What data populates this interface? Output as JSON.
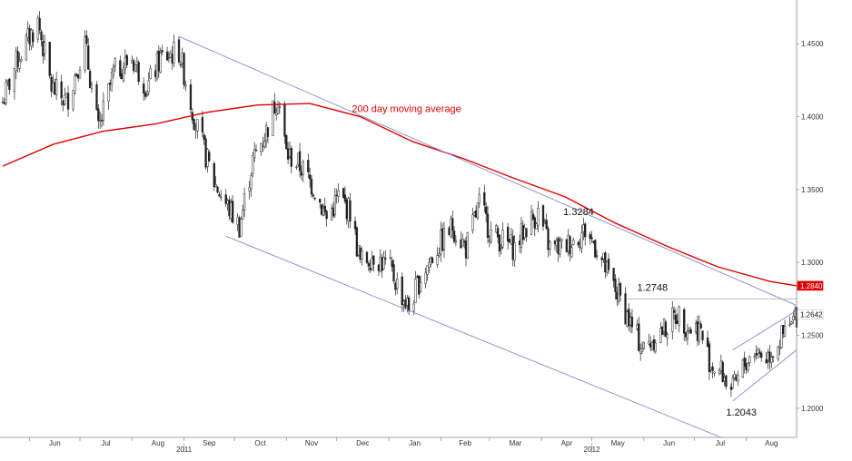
{
  "chart_data": {
    "type": "candlestick",
    "title": "",
    "xlabel": "",
    "ylabel": "",
    "ylim": [
      1.18,
      1.48
    ],
    "y_ticks": [
      1.2,
      1.25,
      1.3,
      1.35,
      1.4,
      1.45
    ],
    "y_tick_labels": [
      "1.2000",
      "1.2500",
      "1.3000",
      "1.3500",
      "1.4000",
      "1.4500"
    ],
    "x_range": [
      "2011-05-16",
      "2012-08-31"
    ],
    "month_ticks": [
      {
        "label": "Jun",
        "date": "2011-06-01"
      },
      {
        "label": "Jul",
        "date": "2011-07-01"
      },
      {
        "label": "Aug",
        "date": "2011-08-01"
      },
      {
        "label": "Sep",
        "date": "2011-09-01"
      },
      {
        "label": "Oct",
        "date": "2011-10-01"
      },
      {
        "label": "Nov",
        "date": "2011-11-01"
      },
      {
        "label": "Dec",
        "date": "2011-12-01"
      },
      {
        "label": "Jan",
        "date": "2012-01-01"
      },
      {
        "label": "Feb",
        "date": "2012-02-01"
      },
      {
        "label": "Mar",
        "date": "2012-03-01"
      },
      {
        "label": "Apr",
        "date": "2012-04-01"
      },
      {
        "label": "May",
        "date": "2012-05-01"
      },
      {
        "label": "Jun",
        "date": "2012-06-01"
      },
      {
        "label": "Jul",
        "date": "2012-07-01"
      },
      {
        "label": "Aug",
        "date": "2012-08-01"
      }
    ],
    "year_labels": [
      {
        "label": "2011",
        "date": "2011-09-01"
      },
      {
        "label": "2012",
        "date": "2012-05-01"
      }
    ],
    "price_path": [
      [
        "2011-05-16",
        1.41
      ],
      [
        "2011-05-25",
        1.44
      ],
      [
        "2011-06-06",
        1.465
      ],
      [
        "2011-06-14",
        1.42
      ],
      [
        "2011-06-23",
        1.41
      ],
      [
        "2011-07-04",
        1.45
      ],
      [
        "2011-07-12",
        1.39
      ],
      [
        "2011-07-21",
        1.43
      ],
      [
        "2011-08-01",
        1.44
      ],
      [
        "2011-08-10",
        1.42
      ],
      [
        "2011-08-18",
        1.44
      ],
      [
        "2011-08-29",
        1.445
      ],
      [
        "2011-09-08",
        1.395
      ],
      [
        "2011-09-19",
        1.355
      ],
      [
        "2011-09-26",
        1.34
      ],
      [
        "2011-10-04",
        1.325
      ],
      [
        "2011-10-12",
        1.37
      ],
      [
        "2011-10-20",
        1.39
      ],
      [
        "2011-10-27",
        1.415
      ],
      [
        "2011-11-01",
        1.375
      ],
      [
        "2011-11-10",
        1.365
      ],
      [
        "2011-11-18",
        1.35
      ],
      [
        "2011-11-25",
        1.33
      ],
      [
        "2011-12-02",
        1.345
      ],
      [
        "2011-12-09",
        1.335
      ],
      [
        "2011-12-15",
        1.3
      ],
      [
        "2011-12-23",
        1.305
      ],
      [
        "2012-01-02",
        1.295
      ],
      [
        "2012-01-10",
        1.275
      ],
      [
        "2012-01-13",
        1.268
      ],
      [
        "2012-01-20",
        1.29
      ],
      [
        "2012-01-30",
        1.31
      ],
      [
        "2012-02-08",
        1.325
      ],
      [
        "2012-02-16",
        1.31
      ],
      [
        "2012-02-24",
        1.34
      ],
      [
        "2012-03-02",
        1.32
      ],
      [
        "2012-03-09",
        1.315
      ],
      [
        "2012-03-16",
        1.31
      ],
      [
        "2012-03-23",
        1.325
      ],
      [
        "2012-03-30",
        1.334
      ],
      [
        "2012-04-06",
        1.31
      ],
      [
        "2012-04-13",
        1.31
      ],
      [
        "2012-04-20",
        1.315
      ],
      [
        "2012-04-27",
        1.322
      ],
      [
        "2012-05-04",
        1.31
      ],
      [
        "2012-05-11",
        1.29
      ],
      [
        "2012-05-18",
        1.275
      ],
      [
        "2012-05-25",
        1.255
      ],
      [
        "2012-06-01",
        1.24
      ],
      [
        "2012-06-08",
        1.25
      ],
      [
        "2012-06-14",
        1.255
      ],
      [
        "2012-06-21",
        1.265
      ],
      [
        "2012-06-28",
        1.255
      ],
      [
        "2012-07-04",
        1.255
      ],
      [
        "2012-07-11",
        1.23
      ],
      [
        "2012-07-17",
        1.225
      ],
      [
        "2012-07-24",
        1.212
      ],
      [
        "2012-07-31",
        1.23
      ],
      [
        "2012-08-06",
        1.24
      ],
      [
        "2012-08-13",
        1.235
      ],
      [
        "2012-08-20",
        1.245
      ],
      [
        "2012-08-27",
        1.255
      ],
      [
        "2012-08-31",
        1.2642
      ]
    ],
    "moving_average": {
      "name": "200 day moving average",
      "color": "#e00000",
      "points": [
        [
          "2011-05-16",
          1.366
        ],
        [
          "2011-06-15",
          1.381
        ],
        [
          "2011-07-15",
          1.39
        ],
        [
          "2011-08-15",
          1.395
        ],
        [
          "2011-09-15",
          1.403
        ],
        [
          "2011-10-15",
          1.408
        ],
        [
          "2011-11-15",
          1.409
        ],
        [
          "2011-12-15",
          1.4
        ],
        [
          "2012-01-15",
          1.383
        ],
        [
          "2012-02-15",
          1.371
        ],
        [
          "2012-03-15",
          1.358
        ],
        [
          "2012-04-15",
          1.345
        ],
        [
          "2012-05-15",
          1.327
        ],
        [
          "2012-06-15",
          1.311
        ],
        [
          "2012-07-15",
          1.297
        ],
        [
          "2012-08-15",
          1.287
        ],
        [
          "2012-08-31",
          1.284
        ]
      ]
    },
    "trendlines": [
      {
        "color": "#8888cc",
        "from": [
          "2011-08-29",
          1.455
        ],
        "to": [
          "2012-08-31",
          1.2705
        ]
      },
      {
        "color": "#8888cc",
        "from": [
          "2011-09-26",
          1.318
        ],
        "to": [
          "2012-07-17",
          1.18
        ]
      },
      {
        "color": "#8888cc",
        "from": [
          "2012-07-24",
          1.24
        ],
        "to": [
          "2012-08-31",
          1.267
        ]
      },
      {
        "color": "#8888cc",
        "from": [
          "2012-07-24",
          1.205
        ],
        "to": [
          "2012-08-31",
          1.24
        ]
      }
    ],
    "horizontal_lines": [
      {
        "y": 1.2748,
        "from": "2012-05-22",
        "to": "2012-08-31",
        "color": "#999999"
      }
    ],
    "annotations": [
      {
        "text": "200 day moving average",
        "date": "2011-12-10",
        "y": 1.403,
        "color": "#e00000"
      },
      {
        "text": "1.3284",
        "date": "2012-04-14",
        "y": 1.3325,
        "color": "#111111"
      },
      {
        "text": "1.2748",
        "date": "2012-05-28",
        "y": 1.2805,
        "color": "#111111"
      },
      {
        "text": "1.2043",
        "date": "2012-07-20",
        "y": 1.195,
        "color": "#111111"
      }
    ],
    "price_tags": [
      {
        "text": "1.2840",
        "y": 1.284,
        "bg": "#e00000",
        "fg": "#ffffff"
      },
      {
        "text": "1.2642",
        "y": 1.2642,
        "bg": "#ffffff",
        "fg": "#111111"
      }
    ],
    "grid": false,
    "legend": "none"
  }
}
